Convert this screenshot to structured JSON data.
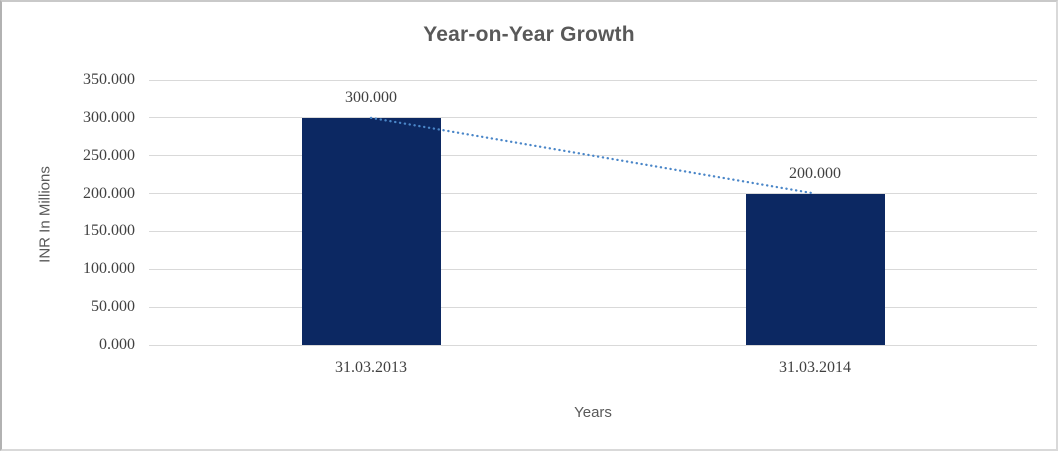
{
  "chart_data": {
    "type": "bar",
    "title": "Year-on-Year Growth",
    "xlabel": "Years",
    "ylabel": "INR In Millions",
    "categories": [
      "31.03.2013",
      "31.03.2014"
    ],
    "values": [
      300,
      200
    ],
    "data_labels": [
      "300.000",
      "200.000"
    ],
    "ytick_labels": [
      "0.000",
      "50.000",
      "100.000",
      "150.000",
      "200.000",
      "250.000",
      "300.000",
      "350.000"
    ],
    "ytick_step": 50,
    "ylim": [
      0,
      350
    ],
    "grid": true,
    "legend": "none",
    "trendline": {
      "style": "dotted",
      "color": "#4a86c8",
      "from_value": 300,
      "to_value": 200
    },
    "colors": {
      "bar": "#0c2862",
      "gridline": "#d9d9d9",
      "title_text": "#595959",
      "axis_title_text": "#595959",
      "tick_label_text": "#404040",
      "data_label_text": "#404040"
    }
  }
}
